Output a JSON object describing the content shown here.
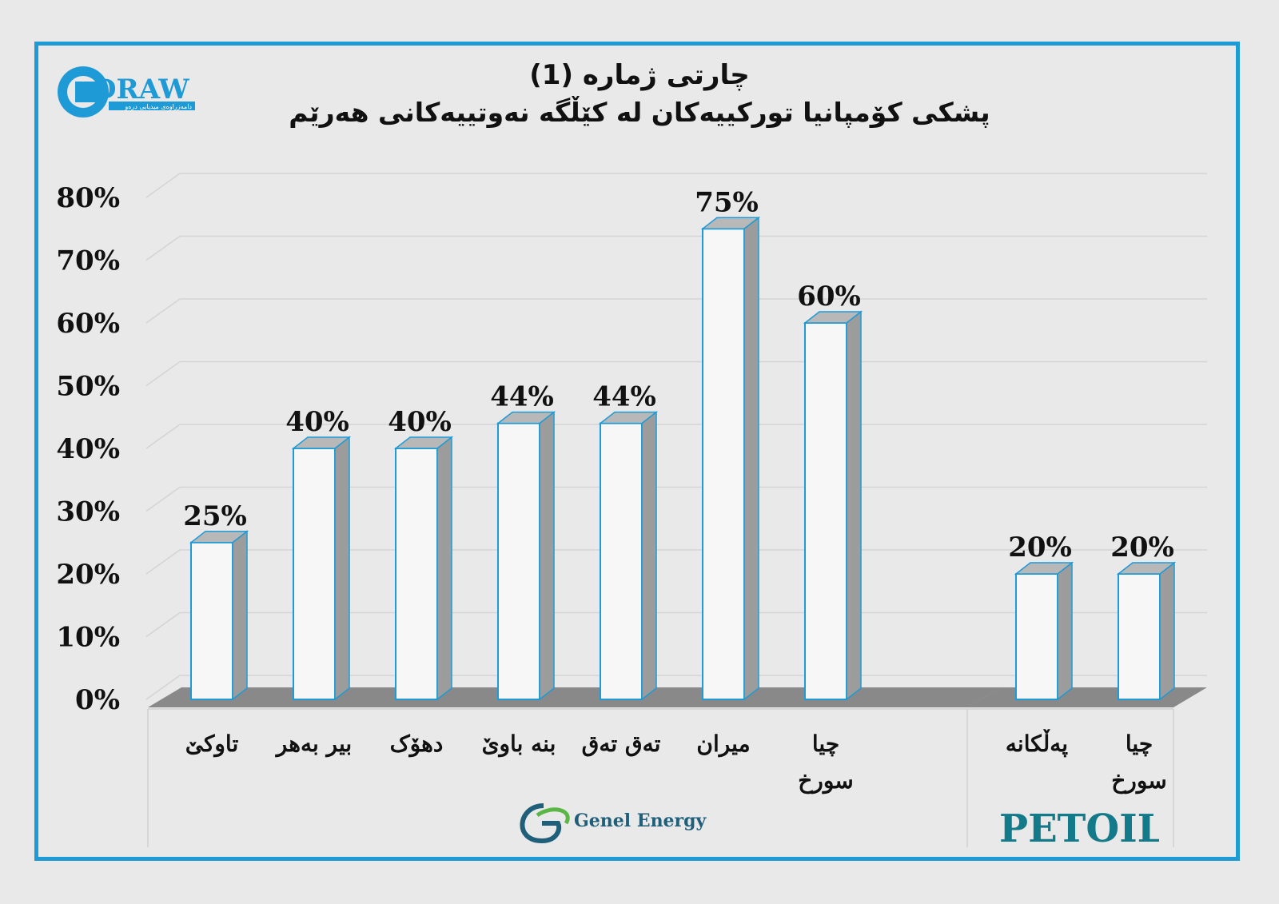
{
  "title": {
    "line1": "چارتی ژماره (1)",
    "line2": "پشکی کۆمپانیا تورکییەکان لە کێڵگە نەوتییەکانی هەرێم"
  },
  "logos": {
    "draw": {
      "wordmark": "DRAW",
      "tagline": "دامەزراوەی میدیایی درەو",
      "color": "#1e9bd7"
    },
    "genel": {
      "name": "Genel Energy",
      "color": "#1f5f7a",
      "accent": "#5bb745"
    },
    "petoil": {
      "name": "PETOIL",
      "color": "#137a8a"
    }
  },
  "colors": {
    "frame": "#1e9bd7",
    "bar_face": "#f7f7f7",
    "bar_edge": "#1e9bd7",
    "bar_side": "#9c9c9c",
    "bar_top": "#b8b8b8",
    "grid": "#d4d4d4"
  },
  "chart_data": {
    "type": "bar",
    "title": "چارتی ژماره (1)",
    "subtitle": "پشکی کۆمپانیا تورکییەکان لە کێڵگە نەوتییەکانی هەرێم",
    "y_ticks": [
      "0%",
      "10%",
      "20%",
      "30%",
      "40%",
      "50%",
      "60%",
      "70%",
      "80%"
    ],
    "ylim": [
      0,
      80
    ],
    "grid": true,
    "groups": [
      {
        "name": "Genel Energy",
        "categories": [
          "تاوکێ",
          "بیر بەهر",
          "دهۆک",
          "بنە باوێ",
          "تەق تەق",
          "میران",
          "چیا سورخ"
        ],
        "values": [
          25,
          40,
          40,
          44,
          44,
          75,
          60
        ],
        "labels": [
          "25%",
          "40%",
          "40%",
          "44%",
          "44%",
          "75%",
          "60%"
        ]
      },
      {
        "name": "PETOIL",
        "categories": [
          "پەڵکانە",
          "چیا سورخ"
        ],
        "values": [
          20,
          20
        ],
        "labels": [
          "20%",
          "20%"
        ]
      }
    ]
  }
}
